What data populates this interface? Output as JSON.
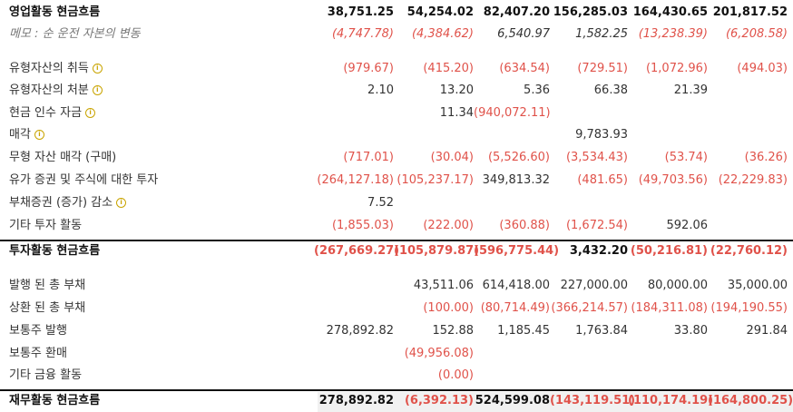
{
  "rows": [
    {
      "label": "영업활동 현금흐름",
      "bold": true,
      "info": false,
      "memo": false,
      "values": [
        "38,751.25",
        "54,254.02",
        "82,407.20",
        "156,285.03",
        "164,430.65",
        "201,817.52"
      ]
    },
    {
      "label": "메모 : 순 운전 자본의 변동",
      "bold": false,
      "info": false,
      "memo": true,
      "values": [
        "(4,747.78)",
        "(4,384.62)",
        "6,540.97",
        "1,582.25",
        "(13,238.39)",
        "(6,208.58)"
      ]
    },
    {
      "label": "유형자산의 취득",
      "bold": false,
      "info": true,
      "memo": false,
      "values": [
        "(979.67)",
        "(415.20)",
        "(634.54)",
        "(729.51)",
        "(1,072.96)",
        "(494.03)"
      ]
    },
    {
      "label": "유형자산의 처분",
      "bold": false,
      "info": true,
      "memo": false,
      "values": [
        "2.10",
        "13.20",
        "5.36",
        "66.38",
        "21.39",
        ""
      ]
    },
    {
      "label": "현금 인수 자금",
      "bold": false,
      "info": true,
      "memo": false,
      "values": [
        "",
        "11.34",
        "(940,072.11)",
        "",
        "",
        ""
      ]
    },
    {
      "label": "매각",
      "bold": false,
      "info": true,
      "memo": false,
      "values": [
        "",
        "",
        "",
        "9,783.93",
        "",
        ""
      ]
    },
    {
      "label": "무형 자산 매각 (구매)",
      "bold": false,
      "info": false,
      "memo": false,
      "values": [
        "(717.01)",
        "(30.04)",
        "(5,526.60)",
        "(3,534.43)",
        "(53.74)",
        "(36.26)"
      ]
    },
    {
      "label": "유가 증권 및 주식에 대한 투자",
      "bold": false,
      "info": false,
      "memo": false,
      "values": [
        "(264,127.18)",
        "(105,237.17)",
        "349,813.32",
        "(481.65)",
        "(49,703.56)",
        "(22,229.83)"
      ]
    },
    {
      "label": "부채증권 (증가) 감소",
      "bold": false,
      "info": true,
      "memo": false,
      "values": [
        "7.52",
        "",
        "",
        "",
        "",
        ""
      ]
    },
    {
      "label": "기타 투자 활동",
      "bold": false,
      "info": false,
      "memo": false,
      "values": [
        "(1,855.03)",
        "(222.00)",
        "(360.88)",
        "(1,672.54)",
        "592.06",
        ""
      ]
    },
    {
      "label": "투자활동 현금흐름",
      "bold": true,
      "info": false,
      "memo": false,
      "values": [
        "(267,669.27)",
        "(105,879.87)",
        "(596,775.44)",
        "3,432.20",
        "(50,216.81)",
        "(22,760.12)"
      ]
    },
    {
      "label": "발행 된 총 부채",
      "bold": false,
      "info": false,
      "memo": false,
      "values": [
        "",
        "43,511.06",
        "614,418.00",
        "227,000.00",
        "80,000.00",
        "35,000.00"
      ]
    },
    {
      "label": "상환 된 총 부채",
      "bold": false,
      "info": false,
      "memo": false,
      "values": [
        "",
        "(100.00)",
        "(80,714.49)",
        "(366,214.57)",
        "(184,311.08)",
        "(194,190.55)"
      ]
    },
    {
      "label": "보통주 발행",
      "bold": false,
      "info": false,
      "memo": false,
      "values": [
        "278,892.82",
        "152.88",
        "1,185.45",
        "1,763.84",
        "33.80",
        "291.84"
      ]
    },
    {
      "label": "보통주 환매",
      "bold": false,
      "info": false,
      "memo": false,
      "values": [
        "",
        "(49,956.08)",
        "",
        "",
        "",
        ""
      ]
    },
    {
      "label": "기타 금융 활동",
      "bold": false,
      "info": false,
      "memo": false,
      "values": [
        "",
        "(0.00)",
        "",
        "",
        "",
        ""
      ]
    },
    {
      "label": "재무활동 현금흐름",
      "bold": true,
      "info": false,
      "memo": false,
      "values": [
        "278,892.82",
        "(6,392.13)",
        "524,599.08",
        "(143,119.51)",
        "(110,174.19)",
        "(164,800.25)"
      ]
    }
  ],
  "colors": {
    "negative": "#e0524a",
    "info_icon": "#c9a400",
    "text": "#333333"
  },
  "icons": {
    "info": "info-circle-icon"
  }
}
